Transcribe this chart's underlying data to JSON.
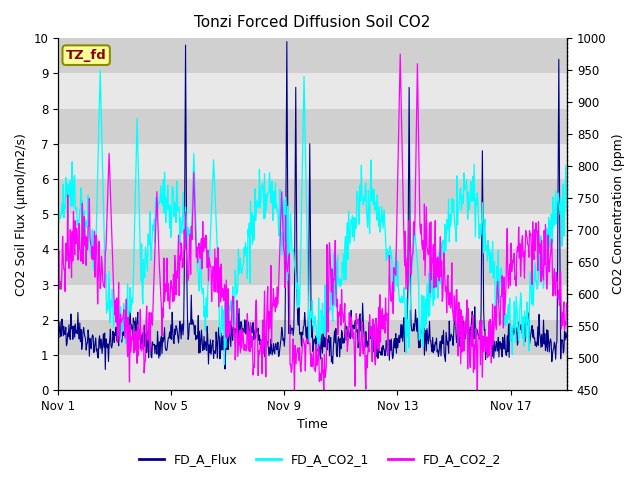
{
  "title": "Tonzi Forced Diffusion Soil CO2",
  "xlabel": "Time",
  "ylabel_left": "CO2 Soil Flux (μmol/m2/s)",
  "ylabel_right": "CO2 Concentration (ppm)",
  "ylim_left": [
    0.0,
    10.0
  ],
  "ylim_right": [
    450,
    1000
  ],
  "yticks_left": [
    0.0,
    1.0,
    2.0,
    3.0,
    4.0,
    5.0,
    6.0,
    7.0,
    8.0,
    9.0,
    10.0
  ],
  "yticks_right": [
    450,
    500,
    550,
    600,
    650,
    700,
    750,
    800,
    850,
    900,
    950,
    1000
  ],
  "xtick_labels": [
    "Nov 1",
    "Nov 5",
    "Nov 9",
    "Nov 13",
    "Nov 17"
  ],
  "xtick_positions": [
    0,
    4,
    8,
    12,
    16
  ],
  "color_flux": "#00008B",
  "color_co2_1": "#00FFFF",
  "color_co2_2": "#FF00FF",
  "legend_labels": [
    "FD_A_Flux",
    "FD_A_CO2_1",
    "FD_A_CO2_2"
  ],
  "tag_text": "TZ_fd",
  "tag_color": "#8B0000",
  "tag_bg": "#FFFF99",
  "tag_border": "#8B8B00",
  "plot_bg": "#DCDCDC",
  "band_light": "#E8E8E8",
  "band_dark": "#D0D0D0",
  "n_points": 800,
  "days": 18,
  "seed": 42
}
